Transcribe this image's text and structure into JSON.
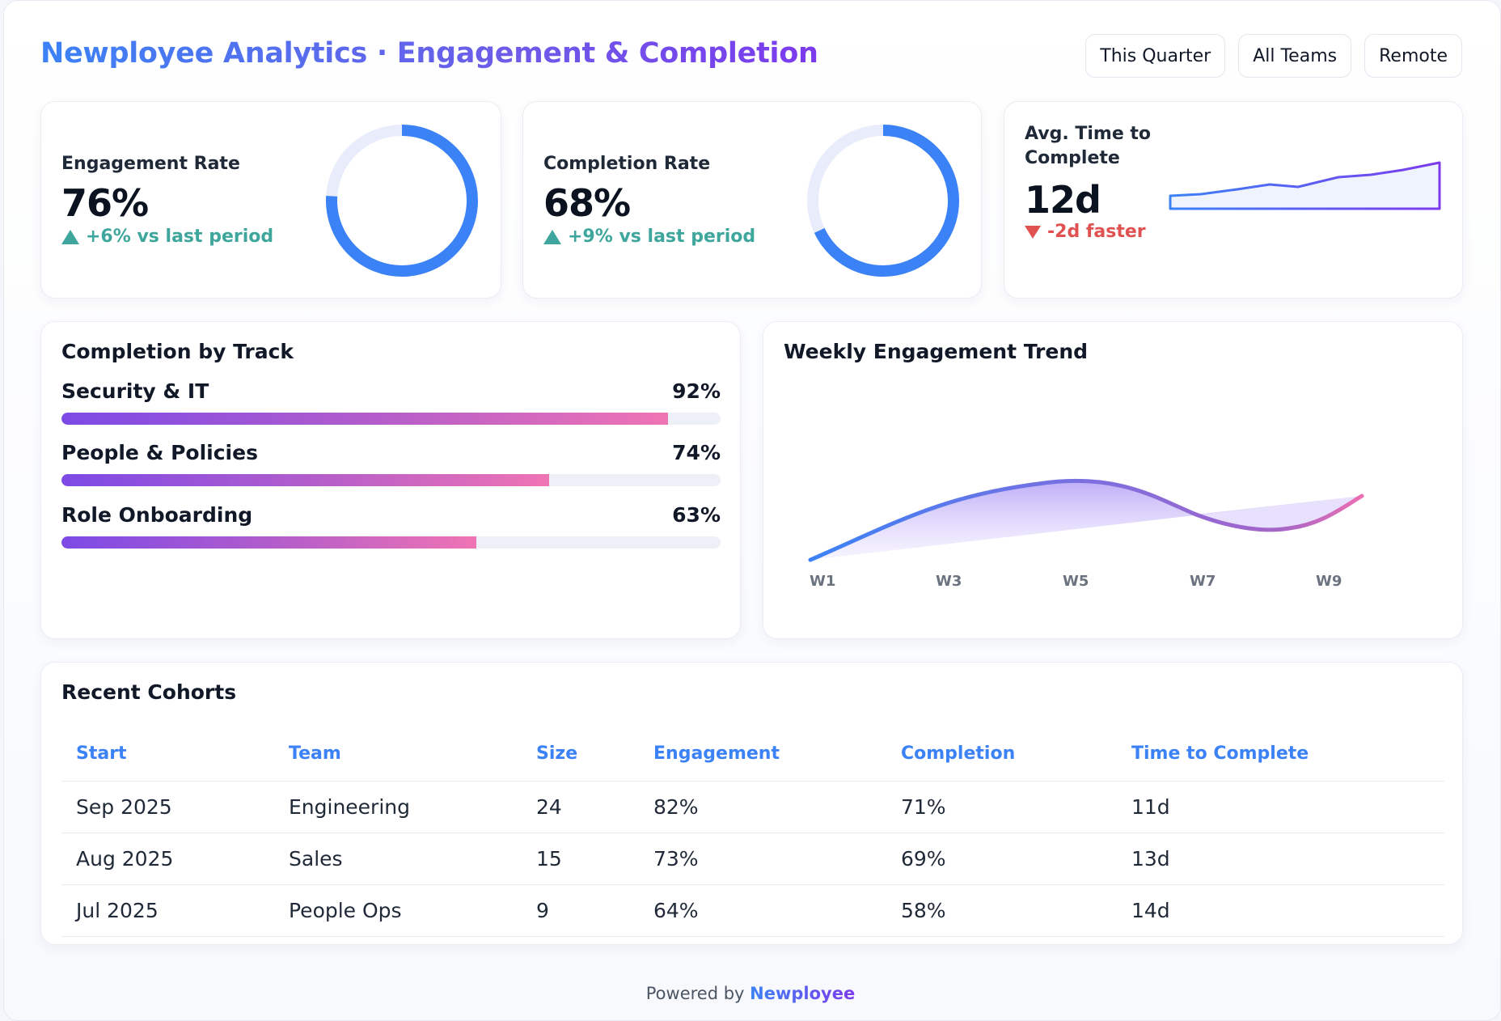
{
  "header": {
    "title": "Newployee Analytics · Engagement & Completion",
    "filters": [
      "This Quarter",
      "All Teams",
      "Remote"
    ]
  },
  "kpis": {
    "engagement": {
      "label": "Engagement Rate",
      "value": "76%",
      "delta": "+6% vs last period",
      "percent": 76
    },
    "completion": {
      "label": "Completion Rate",
      "value": "68%",
      "delta": "+9% vs last period",
      "percent": 68
    },
    "time": {
      "label_line1": "Avg. Time to",
      "label_line2": "Complete",
      "value": "12d",
      "delta": "-2d faster"
    }
  },
  "tracks": {
    "title": "Completion by Track",
    "items": [
      {
        "name": "Security & IT",
        "value": "92%",
        "percent": 92
      },
      {
        "name": "People & Policies",
        "value": "74%",
        "percent": 74
      },
      {
        "name": "Role Onboarding",
        "value": "63%",
        "percent": 63
      }
    ]
  },
  "trend": {
    "title": "Weekly Engagement Trend",
    "labels": [
      "W1",
      "W3",
      "W5",
      "W7",
      "W9"
    ]
  },
  "cohorts": {
    "title": "Recent Cohorts",
    "columns": [
      "Start",
      "Team",
      "Size",
      "Engagement",
      "Completion",
      "Time to Complete"
    ],
    "rows": [
      [
        "Sep 2025",
        "Engineering",
        "24",
        "82%",
        "71%",
        "11d"
      ],
      [
        "Aug 2025",
        "Sales",
        "15",
        "73%",
        "69%",
        "13d"
      ],
      [
        "Jul 2025",
        "People Ops",
        "9",
        "64%",
        "58%",
        "14d"
      ]
    ]
  },
  "footer": {
    "prefix": "Powered by",
    "brand": "Newployee"
  },
  "colors": {
    "accent_blue": "#3b82f6",
    "accent_purple": "#7c3aed",
    "up": "#3ea69c",
    "down": "#e05252"
  }
}
